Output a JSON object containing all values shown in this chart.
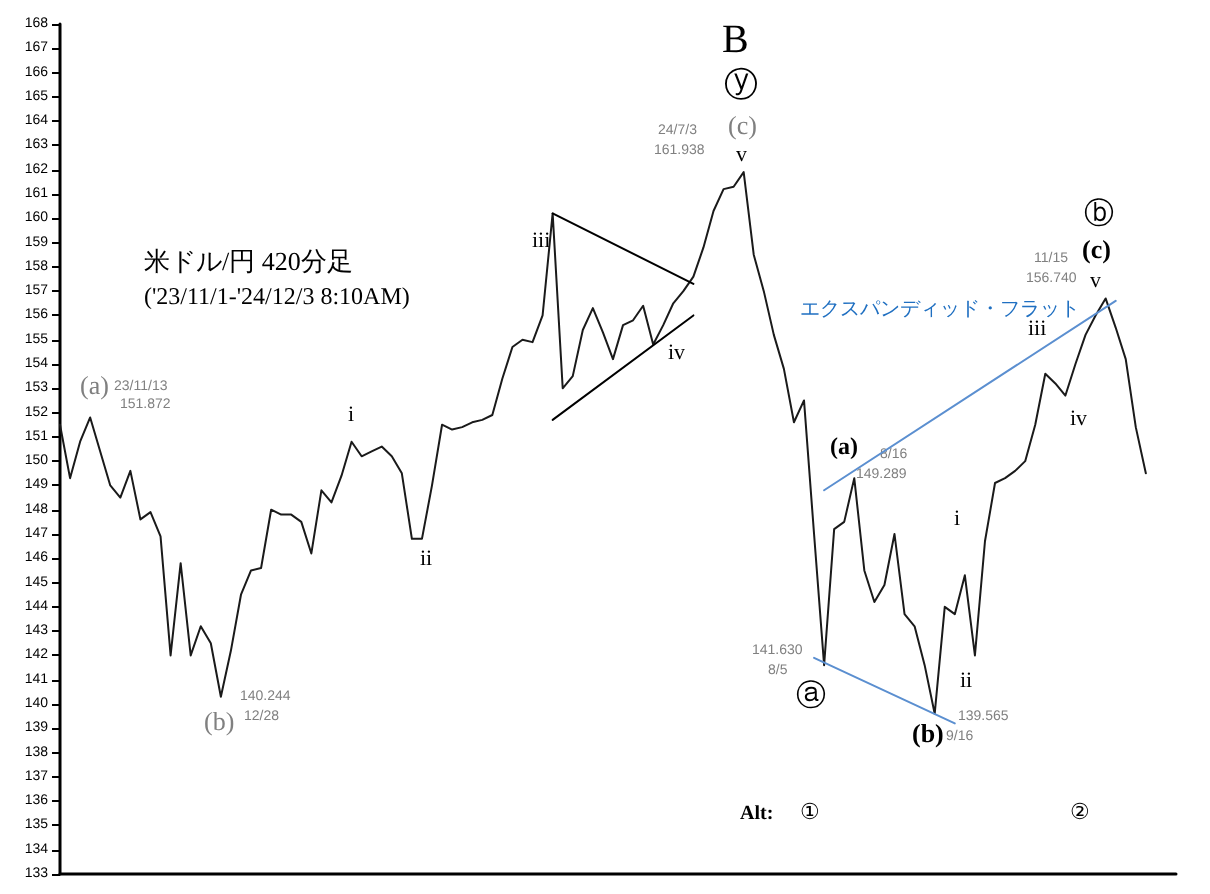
{
  "chart_data": {
    "type": "line",
    "title": "米ドル/円 420分足",
    "subtitle": "('23/11/1-'24/12/3 8:10AM)",
    "categories": [
      null,
      null,
      null,
      null,
      null,
      null,
      null,
      null,
      null,
      null,
      null,
      null,
      null,
      null,
      null,
      null,
      null,
      null,
      null,
      null,
      null,
      null,
      null,
      null,
      null,
      null,
      null,
      null,
      null,
      null,
      null,
      null,
      null,
      null,
      null,
      null,
      null,
      null,
      null,
      null,
      null,
      null,
      null,
      null,
      null,
      null,
      null,
      null,
      null,
      null,
      null,
      null,
      null,
      null,
      null,
      null,
      null,
      null,
      null,
      null,
      null,
      null,
      null,
      null,
      null,
      null,
      null,
      null,
      null,
      null,
      null,
      null,
      null,
      null,
      null,
      null,
      null,
      null,
      null,
      null,
      null,
      null,
      null,
      null,
      null,
      null,
      null,
      null,
      null,
      null,
      null,
      null,
      null,
      null,
      null,
      null,
      null,
      null,
      null,
      null,
      null,
      null,
      null,
      null,
      null,
      null,
      null,
      null,
      null,
      null,
      null,
      null
    ],
    "series": [
      {
        "type": "line",
        "color": "#1a1a1a",
        "values": [
          151.5,
          149.3,
          150.8,
          151.8,
          150.4,
          149.0,
          148.5,
          149.6,
          147.6,
          147.9,
          146.9,
          142.0,
          145.8,
          142.0,
          143.2,
          142.5,
          140.3,
          142.2,
          144.5,
          145.5,
          145.6,
          148.0,
          147.8,
          147.8,
          147.5,
          146.2,
          148.8,
          148.3,
          149.4,
          150.8,
          150.2,
          150.4,
          150.6,
          150.2,
          149.5,
          146.8,
          146.8,
          149.0,
          151.5,
          151.3,
          151.4,
          151.6,
          151.7,
          151.9,
          153.4,
          154.7,
          155.0,
          154.9,
          156.0,
          160.2,
          153.0,
          153.5,
          155.4,
          156.3,
          155.3,
          154.2,
          155.6,
          155.8,
          156.4,
          154.8,
          155.6,
          156.5,
          157.0,
          157.6,
          158.8,
          160.3,
          161.2,
          161.3,
          161.9,
          158.5,
          157.0,
          155.2,
          153.8,
          151.6,
          152.5,
          147.0,
          141.6,
          147.2,
          147.5,
          149.3,
          145.5,
          144.2,
          144.9,
          147.0,
          143.7,
          143.2,
          141.6,
          139.6,
          144.0,
          143.7,
          145.3,
          142.0,
          146.7,
          149.1,
          149.3,
          149.6,
          150.0,
          151.5,
          153.6,
          153.2,
          152.7,
          154.0,
          155.2,
          156.0,
          156.7,
          155.5,
          154.2,
          151.4,
          149.5,
          null,
          null,
          null
        ]
      },
      {
        "type": "line",
        "color": "#000000",
        "values": [
          null,
          null,
          null,
          null,
          null,
          null,
          null,
          null,
          null,
          null,
          null,
          null,
          null,
          null,
          null,
          null,
          null,
          null,
          null,
          null,
          null,
          null,
          null,
          null,
          null,
          null,
          null,
          null,
          null,
          null,
          null,
          null,
          null,
          null,
          null,
          null,
          null,
          null,
          null,
          null,
          null,
          null,
          null,
          null,
          null,
          null,
          null,
          null,
          null,
          160.2,
          null,
          null,
          null,
          null,
          null,
          null,
          null,
          null,
          null,
          null,
          null,
          null,
          null,
          157.3,
          null,
          null,
          null,
          null,
          null,
          null,
          null,
          null,
          null,
          null,
          null,
          null,
          null,
          null,
          null,
          null,
          null,
          null,
          null,
          null,
          null,
          null,
          null,
          null,
          null,
          null,
          null,
          null,
          null,
          null,
          null,
          null,
          null,
          null,
          null,
          null,
          null,
          null,
          null,
          null,
          null,
          null,
          null,
          null,
          null,
          null,
          null,
          null
        ]
      },
      {
        "type": "line",
        "color": "#000000",
        "values": [
          null,
          null,
          null,
          null,
          null,
          null,
          null,
          null,
          null,
          null,
          null,
          null,
          null,
          null,
          null,
          null,
          null,
          null,
          null,
          null,
          null,
          null,
          null,
          null,
          null,
          null,
          null,
          null,
          null,
          null,
          null,
          null,
          null,
          null,
          null,
          null,
          null,
          null,
          null,
          null,
          null,
          null,
          null,
          null,
          null,
          null,
          null,
          null,
          null,
          151.7,
          null,
          null,
          null,
          null,
          null,
          null,
          null,
          null,
          null,
          null,
          null,
          null,
          null,
          156.0,
          null,
          null,
          null,
          null,
          null,
          null,
          null,
          null,
          null,
          null,
          null,
          null,
          null,
          null,
          null,
          null,
          null,
          null,
          null,
          null,
          null,
          null,
          null,
          null,
          null,
          null,
          null,
          null,
          null,
          null,
          null,
          null,
          null,
          null,
          null,
          null,
          null,
          null,
          null,
          null,
          null,
          null,
          null,
          null,
          null,
          null,
          null,
          null
        ]
      },
      {
        "type": "line",
        "color": "#5b8fd0",
        "values": [
          null,
          null,
          null,
          null,
          null,
          null,
          null,
          null,
          null,
          null,
          null,
          null,
          null,
          null,
          null,
          null,
          null,
          null,
          null,
          null,
          null,
          null,
          null,
          null,
          null,
          null,
          null,
          null,
          null,
          null,
          null,
          null,
          null,
          null,
          null,
          null,
          null,
          null,
          null,
          null,
          null,
          null,
          null,
          null,
          null,
          null,
          null,
          null,
          null,
          null,
          null,
          null,
          null,
          null,
          null,
          null,
          null,
          null,
          null,
          null,
          null,
          null,
          null,
          null,
          null,
          null,
          null,
          null,
          null,
          null,
          null,
          null,
          null,
          null,
          null,
          null,
          148.8,
          null,
          null,
          null,
          null,
          null,
          null,
          null,
          null,
          null,
          null,
          null,
          null,
          null,
          null,
          null,
          null,
          null,
          null,
          null,
          null,
          null,
          null,
          null,
          null,
          null,
          null,
          null,
          null,
          156.6,
          null,
          null,
          null,
          null,
          null,
          null
        ]
      },
      {
        "type": "line",
        "color": "#5b8fd0",
        "values": [
          null,
          null,
          null,
          null,
          null,
          null,
          null,
          null,
          null,
          null,
          null,
          null,
          null,
          null,
          null,
          null,
          null,
          null,
          null,
          null,
          null,
          null,
          null,
          null,
          null,
          null,
          null,
          null,
          null,
          null,
          null,
          null,
          null,
          null,
          null,
          null,
          null,
          null,
          null,
          null,
          null,
          null,
          null,
          null,
          null,
          null,
          null,
          null,
          null,
          null,
          null,
          null,
          null,
          null,
          null,
          null,
          null,
          null,
          null,
          null,
          null,
          null,
          null,
          null,
          null,
          null,
          null,
          null,
          null,
          null,
          null,
          null,
          null,
          null,
          null,
          141.9,
          null,
          null,
          null,
          null,
          null,
          null,
          null,
          null,
          null,
          null,
          null,
          null,
          null,
          139.2,
          null,
          null,
          null,
          null,
          null,
          null,
          null,
          null,
          null,
          null,
          null,
          null,
          null,
          null,
          null,
          null,
          null,
          null,
          null,
          null,
          null,
          null
        ]
      }
    ],
    "ylim": [
      133,
      168
    ],
    "yticks": [
      133,
      134,
      135,
      136,
      137,
      138,
      139,
      140,
      141,
      142,
      143,
      144,
      145,
      146,
      147,
      148,
      149,
      150,
      151,
      152,
      153,
      154,
      155,
      156,
      157,
      158,
      159,
      160,
      161,
      162,
      163,
      164,
      165,
      166,
      167,
      168
    ],
    "tick_labels": "y",
    "grid": false,
    "marker": "none",
    "line_style": "solid",
    "annotations": [
      "(a)",
      "23/11/13",
      "151.872",
      "(b)",
      "140.244",
      "12/28",
      "i",
      "ii",
      "iii",
      "iv",
      "B",
      "ⓨ",
      "(c)",
      "v",
      "24/7/3",
      "161.938",
      "(a)",
      "8/16",
      "149.289",
      "141.630",
      "8/5",
      "ⓐ",
      "(b)",
      "139.565",
      "9/16",
      "i",
      "ii",
      "iii",
      "iv",
      "v",
      "(c)",
      "ⓑ",
      "11/15",
      "156.740",
      "エクスパンディッド・フラット",
      "Alt:",
      "①",
      "②"
    ]
  }
}
